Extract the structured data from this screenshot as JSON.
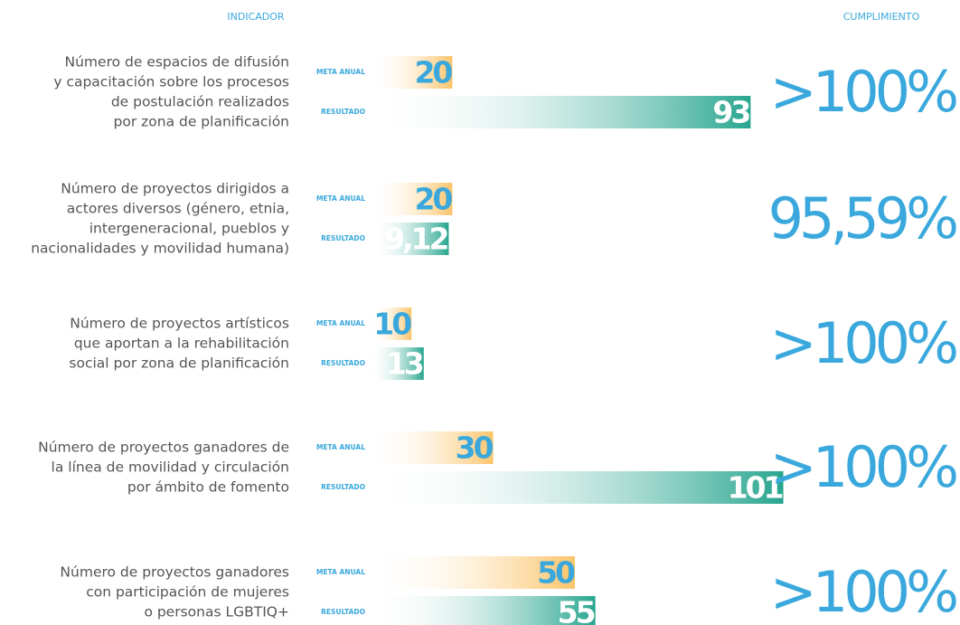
{
  "chart_data": {
    "type": "bar",
    "header_left": "INDICADOR",
    "header_right": "CUMPLIMIENTO",
    "categories": [
      [
        "Número de espacios de difusión",
        "y capacitación sobre los procesos",
        "de postulación realizados",
        "por zona de planificación"
      ],
      [
        "Número de proyectos dirigidos a",
        "actores diversos (género, etnia,",
        "intergeneracional, pueblos y",
        "nacionalidades y movilidad humana)"
      ],
      [
        "Número de proyectos artísticos",
        "que aportan a la rehabilitación",
        "social por zona de planificación"
      ],
      [
        "Número de proyectos ganadores de",
        "la línea de movilidad y circulación",
        "por ámbito de fomento"
      ],
      [
        "Número de proyectos ganadores",
        "con participación de mujeres",
        "o personas LGBTIQ+"
      ]
    ],
    "series": [
      {
        "name": "META ANUAL",
        "color": "#fbc46a",
        "values": [
          20,
          20,
          10,
          30,
          50
        ]
      },
      {
        "name": "RESULTADO",
        "color": "#27a58e",
        "values": [
          93,
          19.12,
          13,
          101,
          55
        ],
        "value_labels": [
          "93",
          "19,12",
          "13",
          "101",
          "55"
        ]
      }
    ],
    "cumplimiento": [
      ">100%",
      "95,59%",
      ">100%",
      ">100%",
      ">100%"
    ]
  }
}
